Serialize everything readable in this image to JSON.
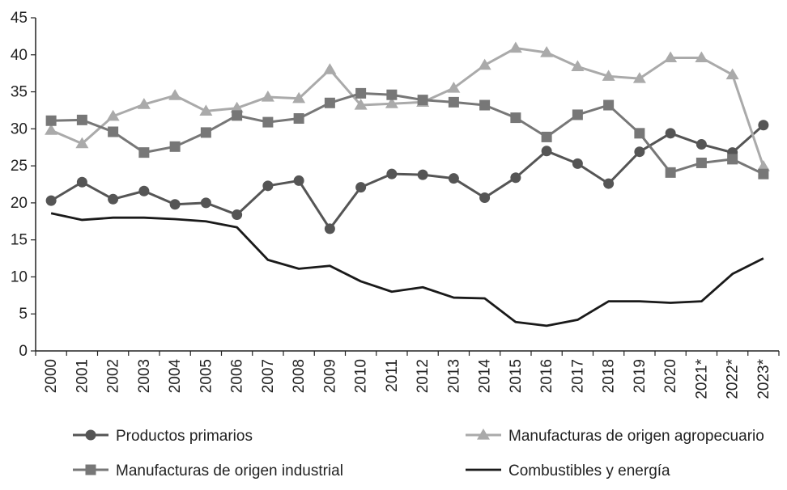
{
  "chart_data": {
    "type": "line",
    "title": "",
    "xlabel": "",
    "ylabel": "",
    "ylim": [
      0,
      45
    ],
    "yticks": [
      0,
      5,
      10,
      15,
      20,
      25,
      30,
      35,
      40,
      45
    ],
    "y_tick_labels": [
      "0",
      "5",
      "10",
      "15",
      "20",
      "25",
      "30",
      "35",
      "40",
      "45"
    ],
    "grid": false,
    "legend_position": "bottom",
    "categories": [
      "2000",
      "2001",
      "2002",
      "2003",
      "2004",
      "2005",
      "2006",
      "2007",
      "2008",
      "2009",
      "2010",
      "2011",
      "2012",
      "2013",
      "2014",
      "2015",
      "2016",
      "2017",
      "2018",
      "2019",
      "2020",
      "2021*",
      "2022*",
      "2023*"
    ],
    "series": [
      {
        "name": "Productos primarios",
        "marker": "circle",
        "color": "#555555",
        "values": [
          20.3,
          22.8,
          20.5,
          21.6,
          19.8,
          20.0,
          18.4,
          22.3,
          23.0,
          16.5,
          22.1,
          23.9,
          23.8,
          23.3,
          20.7,
          23.4,
          27.0,
          25.3,
          22.6,
          26.9,
          29.4,
          27.9,
          26.8,
          30.5
        ]
      },
      {
        "name": "Manufacturas de origen agropecuario",
        "marker": "triangle",
        "color": "#aaaaaa",
        "values": [
          29.8,
          28.0,
          31.7,
          33.3,
          34.5,
          32.4,
          32.8,
          34.3,
          34.1,
          38.0,
          33.2,
          33.4,
          33.6,
          35.5,
          38.6,
          40.9,
          40.3,
          38.4,
          37.1,
          36.8,
          39.6,
          39.6,
          37.3,
          24.9
        ]
      },
      {
        "name": "Manufacturas de origen industrial",
        "marker": "square",
        "color": "#777777",
        "values": [
          31.1,
          31.2,
          29.6,
          26.8,
          27.6,
          29.5,
          31.8,
          30.9,
          31.4,
          33.5,
          34.8,
          34.6,
          33.9,
          33.6,
          33.2,
          31.5,
          28.9,
          31.9,
          33.2,
          29.4,
          24.1,
          25.4,
          25.9,
          23.9
        ]
      },
      {
        "name": "Combustibles y energía",
        "marker": "none",
        "color": "#1a1a1a",
        "values": [
          18.6,
          17.7,
          18.0,
          18.0,
          17.8,
          17.5,
          16.7,
          12.3,
          11.1,
          11.5,
          9.4,
          8.0,
          8.6,
          7.2,
          7.1,
          3.9,
          3.4,
          4.2,
          6.7,
          6.7,
          6.5,
          6.7,
          10.4,
          12.5
        ]
      }
    ]
  }
}
